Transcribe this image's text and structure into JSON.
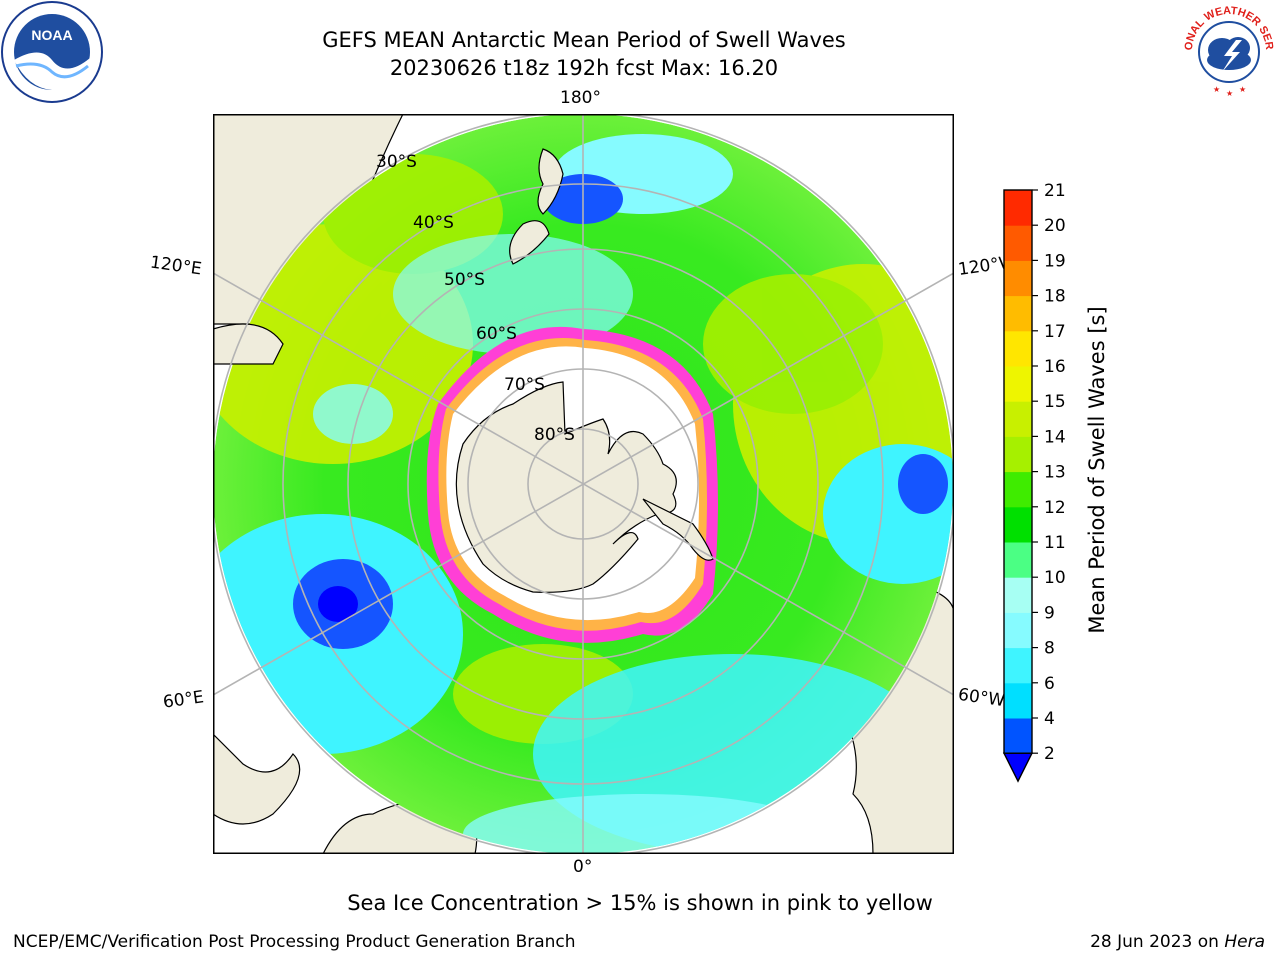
{
  "title_line1": "GEFS MEAN Antarctic Mean Period of Swell Waves",
  "title_line2": "20230626 t18z 192h fcst   Max: 16.20",
  "map": {
    "longitude_labels": {
      "top": "180°",
      "bottom": "0°",
      "upper_left": "120°E",
      "lower_left": "60°E",
      "upper_right": "120°W",
      "lower_right": "60°W"
    },
    "latitude_labels": [
      "30°S",
      "40°S",
      "50°S",
      "60°S",
      "70°S",
      "80°S"
    ],
    "colors": {
      "land": "#efecdc",
      "sea_ice_edge": "#ff3fd6",
      "sea_ice_inner": "#ffb347",
      "ocean_dominant": "#2fe61a"
    }
  },
  "colorbar": {
    "label": "Mean Period of Swell Waves [s]",
    "ticks": [
      "2",
      "4",
      "6",
      "8",
      "9",
      "10",
      "11",
      "12",
      "13",
      "14",
      "15",
      "16",
      "17",
      "18",
      "19",
      "20",
      "21"
    ],
    "colors": [
      "#0054ff",
      "#00dfff",
      "#3ff4ff",
      "#86fbff",
      "#a7fff3",
      "#4bff84",
      "#00e000",
      "#3fec00",
      "#a6f000",
      "#c8f000",
      "#eef500",
      "#ffe600",
      "#ffbc00",
      "#ff8c00",
      "#ff5a00",
      "#ff2a00"
    ],
    "under_color": "#0000ff"
  },
  "caption": "Sea Ice Concentration > 15% is shown in pink to yellow",
  "footer_left": "NCEP/EMC/Verification Post Processing Product Generation Branch",
  "footer_date": "28 Jun 2023 on",
  "footer_host": "Hera",
  "logos": {
    "noaa_text": "NOAA",
    "nws_text": "NATIONAL WEATHER SERVICE"
  }
}
